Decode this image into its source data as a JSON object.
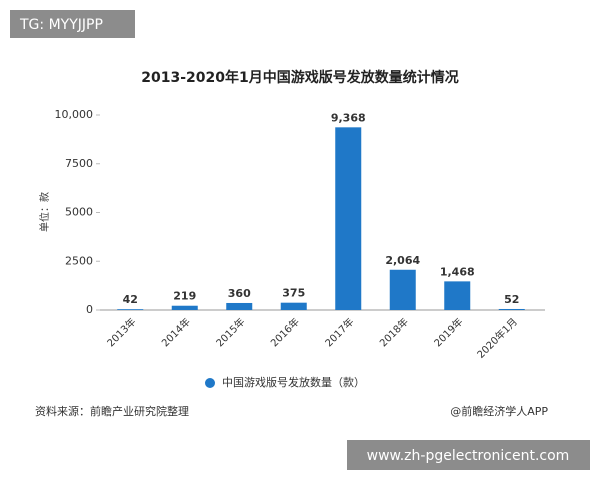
{
  "chart_data": {
    "type": "bar",
    "title": "2013-2020年1月中国游戏版号发放数量统计情况",
    "y_label": "单位：款",
    "categories": [
      "2013年",
      "2014年",
      "2015年",
      "2016年",
      "2017年",
      "2018年",
      "2019年",
      "2020年1月"
    ],
    "series": [
      {
        "name": "中国游戏版号发放数量（款）",
        "color": "#1f78c8",
        "values": [
          42,
          219,
          360,
          375,
          9368,
          2064,
          1468,
          52
        ],
        "value_labels": [
          "42",
          "219",
          "360",
          "375",
          "9,368",
          "2,064",
          "1,468",
          "52"
        ]
      }
    ],
    "ylim": [
      0,
      10000
    ],
    "yticks": [
      0,
      2500,
      5000,
      7500,
      {
        "value": 10000,
        "label": "10,000"
      }
    ],
    "source": "资料来源：前瞻产业研究院整理",
    "credit": "@前瞻经济学人APP"
  },
  "overlay": {
    "tag": "TG: MYYJJPP",
    "url": "www.zh-pgelectronicent.com"
  }
}
